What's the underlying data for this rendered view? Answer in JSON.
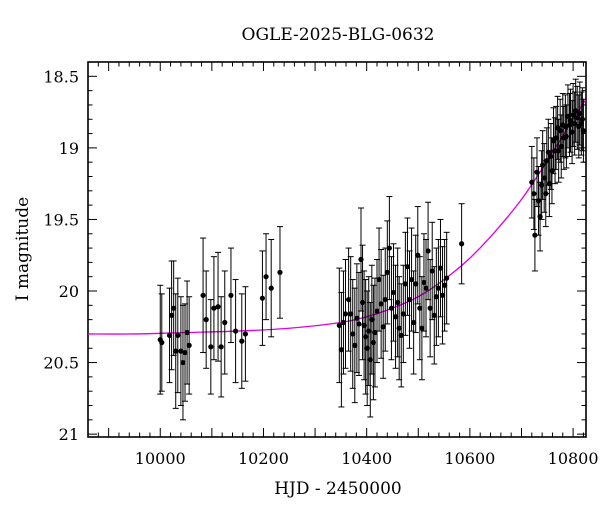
{
  "chart_data": {
    "type": "scatter",
    "title": "OGLE-2025-BLG-0632",
    "xlabel": "HJD - 2450000",
    "ylabel": "I magnitude",
    "xlim": [
      9860,
      10825
    ],
    "ylim": [
      21.02,
      18.4
    ],
    "y_inverted": true,
    "xticks": [
      10000,
      10200,
      10400,
      10600,
      10800
    ],
    "xtick_labels": [
      "10000",
      "10200",
      "10400",
      "10600",
      "10800"
    ],
    "yticks": [
      18.5,
      19,
      19.5,
      20,
      20.5,
      21
    ],
    "ytick_labels": [
      "18.5",
      "19",
      "19.5",
      "20",
      "20.5",
      "21"
    ],
    "grid": false,
    "colors": {
      "data": "#000000",
      "model": "#e000e0"
    },
    "series": [
      {
        "kind": "points_with_errorbars",
        "points": [
          [
            10000,
            20.34,
            0.38
          ],
          [
            10003,
            20.36,
            0.34
          ],
          [
            10018,
            20.31,
            0.33
          ],
          [
            10022,
            20.17,
            0.38
          ],
          [
            10026,
            20.12,
            0.33
          ],
          [
            10030,
            20.42,
            0.4
          ],
          [
            10034,
            20.31,
            0.4
          ],
          [
            10040,
            20.42,
            0.38
          ],
          [
            10044,
            20.5,
            0.4
          ],
          [
            10048,
            20.43,
            0.34
          ],
          [
            10052,
            20.29,
            0.36
          ],
          [
            10056,
            20.38,
            0.34
          ],
          [
            10083,
            20.03,
            0.4
          ],
          [
            10089,
            20.2,
            0.34
          ],
          [
            10098,
            20.39,
            0.33
          ],
          [
            10104,
            20.12,
            0.36
          ],
          [
            10112,
            20.11,
            0.38
          ],
          [
            10118,
            20.39,
            0.35
          ],
          [
            10125,
            20.22,
            0.36
          ],
          [
            10137,
            20.03,
            0.33
          ],
          [
            10146,
            20.28,
            0.36
          ],
          [
            10158,
            20.35,
            0.33
          ],
          [
            10165,
            20.3,
            0.33
          ],
          [
            10198,
            20.05,
            0.33
          ],
          [
            10205,
            19.9,
            0.3
          ],
          [
            10215,
            19.98,
            0.34
          ],
          [
            10232,
            19.87,
            0.32
          ],
          [
            10347,
            20.24,
            0.4
          ],
          [
            10351,
            20.41,
            0.4
          ],
          [
            10355,
            20.22,
            0.36
          ],
          [
            10359,
            20.16,
            0.38
          ],
          [
            10365,
            20.06,
            0.36
          ],
          [
            10369,
            20.16,
            0.4
          ],
          [
            10373,
            20.3,
            0.38
          ],
          [
            10377,
            20.38,
            0.4
          ],
          [
            10381,
            20.19,
            0.38
          ],
          [
            10385,
            20.23,
            0.36
          ],
          [
            10389,
            19.78,
            0.36
          ],
          [
            10392,
            20.08,
            0.4
          ],
          [
            10395,
            20.24,
            0.38
          ],
          [
            10398,
            20.32,
            0.4
          ],
          [
            10401,
            20.4,
            0.4
          ],
          [
            10404,
            20.28,
            0.38
          ],
          [
            10407,
            20.48,
            0.4
          ],
          [
            10410,
            20.2,
            0.38
          ],
          [
            10413,
            20.36,
            0.4
          ],
          [
            10416,
            20.29,
            0.38
          ],
          [
            10420,
            20.14,
            0.36
          ],
          [
            10424,
            19.92,
            0.36
          ],
          [
            10428,
            20.09,
            0.38
          ],
          [
            10432,
            20.25,
            0.36
          ],
          [
            10436,
            20.06,
            0.36
          ],
          [
            10440,
            19.87,
            0.36
          ],
          [
            10444,
            19.7,
            0.36
          ],
          [
            10448,
            20.12,
            0.36
          ],
          [
            10452,
            20.01,
            0.34
          ],
          [
            10456,
            20.18,
            0.36
          ],
          [
            10460,
            20.08,
            0.38
          ],
          [
            10463,
            20.26,
            0.36
          ],
          [
            10467,
            20.31,
            0.36
          ],
          [
            10471,
            20.16,
            0.34
          ],
          [
            10475,
            19.95,
            0.36
          ],
          [
            10479,
            19.83,
            0.34
          ],
          [
            10483,
            20.06,
            0.34
          ],
          [
            10487,
            19.92,
            0.36
          ],
          [
            10491,
            20.22,
            0.36
          ],
          [
            10495,
            19.95,
            0.34
          ],
          [
            10499,
            19.75,
            0.34
          ],
          [
            10503,
            20.12,
            0.36
          ],
          [
            10507,
            20.26,
            0.36
          ],
          [
            10511,
            19.94,
            0.34
          ],
          [
            10515,
            19.98,
            0.34
          ],
          [
            10519,
            19.72,
            0.34
          ],
          [
            10523,
            20.12,
            0.34
          ],
          [
            10527,
            19.86,
            0.34
          ],
          [
            10531,
            20.17,
            0.34
          ],
          [
            10535,
            20.04,
            0.34
          ],
          [
            10539,
            19.98,
            0.34
          ],
          [
            10543,
            19.84,
            0.34
          ],
          [
            10547,
            20.03,
            0.34
          ],
          [
            10551,
            19.96,
            0.32
          ],
          [
            10555,
            19.91,
            0.32
          ],
          [
            10584,
            19.67,
            0.28
          ],
          [
            10720,
            19.24,
            0.25
          ],
          [
            10724,
            19.32,
            0.25
          ],
          [
            10726,
            19.61,
            0.25
          ],
          [
            10730,
            19.17,
            0.24
          ],
          [
            10733,
            19.37,
            0.24
          ],
          [
            10736,
            19.48,
            0.24
          ],
          [
            10739,
            19.26,
            0.24
          ],
          [
            10741,
            19.12,
            0.24
          ],
          [
            10744,
            19.21,
            0.24
          ],
          [
            10747,
            19.32,
            0.23
          ],
          [
            10749,
            19.09,
            0.23
          ],
          [
            10752,
            19.03,
            0.23
          ],
          [
            10754,
            19.25,
            0.23
          ],
          [
            10757,
            19.06,
            0.23
          ],
          [
            10759,
            19.16,
            0.23
          ],
          [
            10762,
            18.95,
            0.23
          ],
          [
            10765,
            19.02,
            0.23
          ],
          [
            10767,
            18.93,
            0.22
          ],
          [
            10770,
            18.86,
            0.22
          ],
          [
            10772,
            19.02,
            0.22
          ],
          [
            10775,
            18.88,
            0.22
          ],
          [
            10777,
            18.99,
            0.22
          ],
          [
            10780,
            18.84,
            0.22
          ],
          [
            10782,
            18.93,
            0.22
          ],
          [
            10785,
            18.85,
            0.22
          ],
          [
            10787,
            18.92,
            0.22
          ],
          [
            10790,
            18.78,
            0.22
          ],
          [
            10793,
            18.84,
            0.22
          ],
          [
            10795,
            18.81,
            0.22
          ],
          [
            10798,
            18.89,
            0.22
          ],
          [
            10800,
            18.77,
            0.22
          ],
          [
            10803,
            18.83,
            0.22
          ],
          [
            10805,
            18.74,
            0.22
          ],
          [
            10808,
            18.79,
            0.22
          ],
          [
            10811,
            18.85,
            0.22
          ],
          [
            10813,
            18.76,
            0.22
          ],
          [
            10816,
            18.83,
            0.22
          ],
          [
            10818,
            18.8,
            0.22
          ],
          [
            10820,
            18.88,
            0.22
          ]
        ]
      },
      {
        "kind": "model_curve",
        "x": [
          9860,
          9950,
          10050,
          10150,
          10250,
          10350,
          10400,
          10450,
          10500,
          10550,
          10600,
          10650,
          10700,
          10750,
          10800,
          10825
        ],
        "y": [
          20.3,
          20.3,
          20.29,
          20.28,
          20.26,
          20.22,
          20.18,
          20.12,
          20.04,
          19.92,
          19.77,
          19.58,
          19.36,
          19.09,
          18.8,
          18.66
        ]
      }
    ]
  }
}
